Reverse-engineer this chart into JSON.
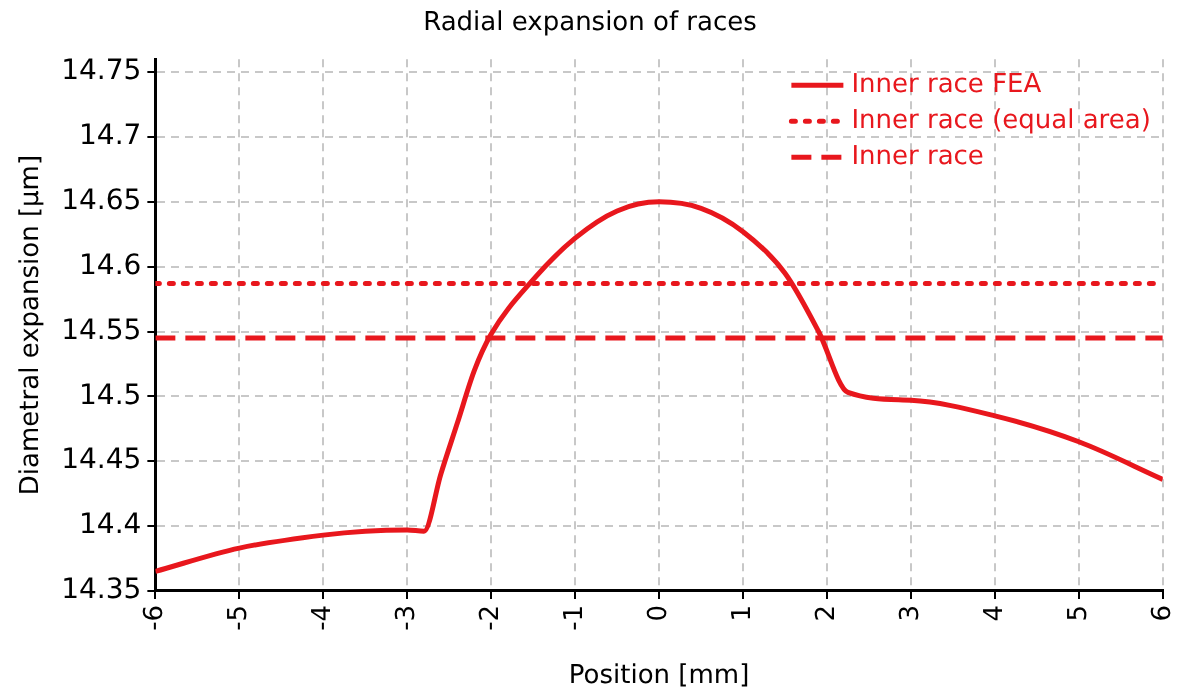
{
  "chart_data": {
    "type": "line",
    "title": "Radial expansion of races",
    "xlabel": "Position [mm]",
    "ylabel": "Diametral expansion [µm]",
    "xlim": [
      -6,
      6
    ],
    "xticks": [
      -6,
      -5,
      -4,
      -3,
      -2,
      -1,
      0,
      1,
      2,
      3,
      4,
      5,
      6
    ],
    "ylim": [
      14.35,
      14.76
    ],
    "yticks": [
      14.35,
      14.4,
      14.45,
      14.5,
      14.55,
      14.6,
      14.65,
      14.7,
      14.75
    ],
    "grid": true,
    "legend": "top right",
    "marker": "none",
    "series": [
      {
        "name": "Inner race FEA",
        "color": "#e8171d",
        "line_style": "solid",
        "x": [
          -6,
          -5,
          -4,
          -3.5,
          -3,
          -2.8,
          -2.6,
          -2.4,
          -2.2,
          -2,
          -1.5,
          -1,
          -0.5,
          0,
          0.5,
          1,
          1.5,
          1.9,
          2.25,
          3,
          4,
          5,
          6
        ],
        "values": [
          14.365,
          14.383,
          14.393,
          14.396,
          14.397,
          14.396,
          14.44,
          14.48,
          14.52,
          14.548,
          14.59,
          14.622,
          14.643,
          14.65,
          14.645,
          14.627,
          14.595,
          14.55,
          14.503,
          14.497,
          14.485,
          14.465,
          14.436
        ]
      },
      {
        "name": "Inner race (equal area)",
        "color": "#e8171d",
        "line_style": "dotted",
        "x": [
          -6,
          6
        ],
        "values": [
          14.587,
          14.587
        ]
      },
      {
        "name": "Inner race",
        "color": "#e8171d",
        "line_style": "dashed",
        "x": [
          -6,
          6
        ],
        "values": [
          14.545,
          14.545
        ]
      }
    ]
  }
}
